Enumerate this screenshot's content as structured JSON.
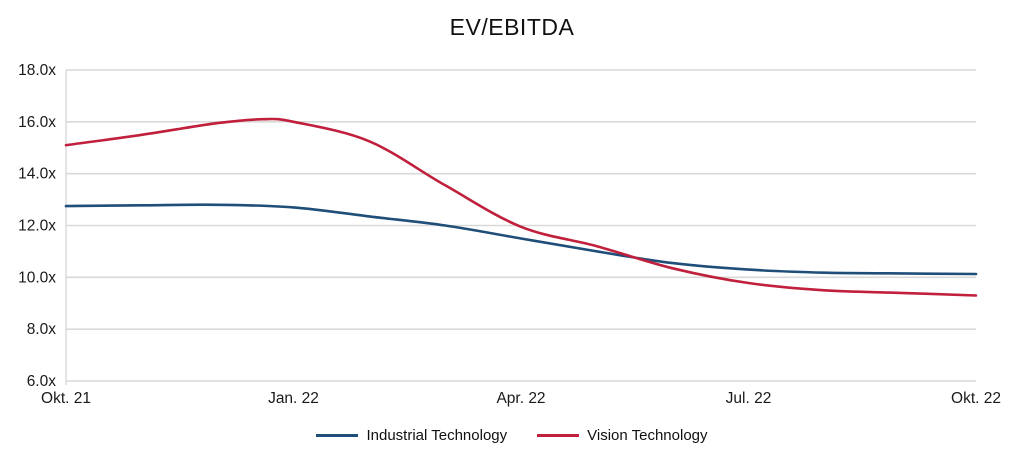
{
  "title": "EV/EBITDA",
  "colors": {
    "grid": "#d9d9d9",
    "axis_text": "#1a1a1a",
    "background": "#ffffff",
    "industrial": "#1f4e79",
    "vision": "#c0203c"
  },
  "chart_data": {
    "type": "line",
    "title": "EV/EBITDA",
    "xlabel": "",
    "ylabel": "",
    "ylim": [
      6,
      18
    ],
    "xlim_months": [
      0,
      12
    ],
    "grid": "horizontal",
    "legend_position": "bottom-center",
    "y_axis": {
      "tick_values": [
        18,
        16,
        14,
        12,
        10,
        8,
        6
      ],
      "tick_labels": [
        "18.0x",
        "16.0x",
        "14.0x",
        "12.0x",
        "10.0x",
        "8.0x",
        "6.0x"
      ]
    },
    "x_axis": {
      "tick_positions_months": [
        0,
        3,
        6,
        9,
        12
      ],
      "tick_labels": [
        "Okt. 21",
        "Jan. 22",
        "Apr. 22",
        "Jul. 22",
        "Okt. 22"
      ]
    },
    "series": [
      {
        "name": "Industrial Technology",
        "color": "#1f4e79",
        "x_months": [
          0,
          1,
          2,
          3,
          4,
          5,
          6,
          7,
          8,
          9,
          10,
          11,
          12
        ],
        "values": [
          12.75,
          12.78,
          12.8,
          12.7,
          12.35,
          12.0,
          11.5,
          11.0,
          10.55,
          10.3,
          10.18,
          10.15,
          10.13
        ]
      },
      {
        "name": "Vision Technology",
        "color": "#c0203c",
        "x_months": [
          0,
          1,
          2,
          2.6,
          3,
          4,
          5,
          6,
          7,
          8,
          9,
          10,
          11,
          12
        ],
        "values": [
          15.1,
          15.5,
          15.95,
          16.1,
          16.0,
          15.25,
          13.55,
          11.95,
          11.2,
          10.35,
          9.78,
          9.5,
          9.4,
          9.3
        ]
      }
    ],
    "crossover_note": "Vision falls below Industrial around mid 2022 at ~10.7x"
  }
}
